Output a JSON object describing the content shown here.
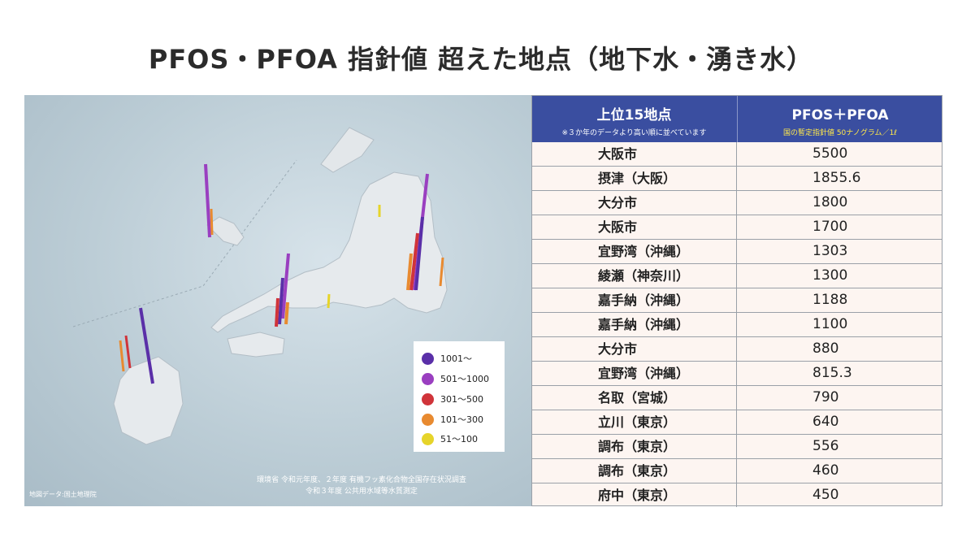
{
  "title": "PFOS・PFOA 指針値 超えた地点（地下水・湧き水）",
  "legend": [
    {
      "label": "1001〜",
      "color": "#5a2fa8"
    },
    {
      "label": "501〜1000",
      "color": "#9a3fc0"
    },
    {
      "label": "301〜500",
      "color": "#d0343a"
    },
    {
      "label": "101〜300",
      "color": "#e88a30"
    },
    {
      "label": "51〜100",
      "color": "#e6d42a"
    }
  ],
  "source_note": {
    "line1": "環境省 令和元年度、２年度 有機フッ素化合物全国存在状況調査",
    "line2": "令和３年度 公共用水域等水質測定"
  },
  "map_credit": "地図データ:国土地理院",
  "table": {
    "header_left": "上位15地点",
    "header_left_sub": "※３か年のデータより高い順に並べています",
    "header_right": "PFOS＋PFOA",
    "header_right_sub": "国の暫定指針値 50ナノグラム／1ℓ"
  },
  "chart_data": {
    "type": "table",
    "title": "PFOS・PFOA 指針値 超えた地点（地下水・湧き水）",
    "columns": [
      "上位15地点",
      "PFOS＋PFOA"
    ],
    "rows": [
      {
        "place": "大阪市",
        "value": "5500"
      },
      {
        "place": "摂津（大阪）",
        "value": "1855.6"
      },
      {
        "place": "大分市",
        "value": "1800"
      },
      {
        "place": "大阪市",
        "value": "1700"
      },
      {
        "place": "宜野湾（沖縄）",
        "value": "1303"
      },
      {
        "place": "綾瀬（神奈川）",
        "value": "1300"
      },
      {
        "place": "嘉手納（沖縄）",
        "value": "1188"
      },
      {
        "place": "嘉手納（沖縄）",
        "value": "1100"
      },
      {
        "place": "大分市",
        "value": "880"
      },
      {
        "place": "宜野湾（沖縄）",
        "value": "815.3"
      },
      {
        "place": "名取（宮城）",
        "value": "790"
      },
      {
        "place": "立川（東京）",
        "value": "640"
      },
      {
        "place": "調布（東京）",
        "value": "556"
      },
      {
        "place": "調布（東京）",
        "value": "460"
      },
      {
        "place": "府中（東京）",
        "value": "450"
      }
    ]
  }
}
